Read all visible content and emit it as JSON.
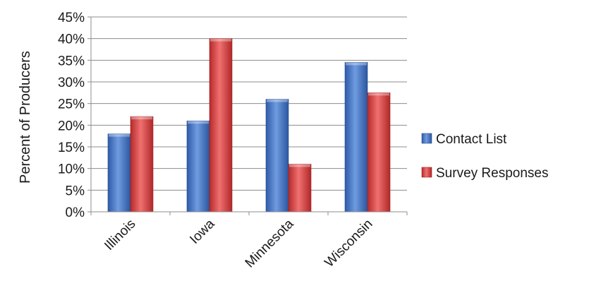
{
  "chart_data": {
    "type": "bar",
    "title": "",
    "xlabel": "",
    "ylabel": "Percent of Producers",
    "categories": [
      "Illinois",
      "Iowa",
      "Minnesota",
      "Wisconsin"
    ],
    "series": [
      {
        "name": "Contact List",
        "values": [
          18,
          21,
          26,
          34.5
        ],
        "color": "#4472c4"
      },
      {
        "name": "Survey Responses",
        "values": [
          22,
          40,
          11,
          27.5
        ],
        "color": "#e04b4b"
      }
    ],
    "ylim": [
      0,
      45
    ],
    "yticks": [
      "0%",
      "5%",
      "10%",
      "15%",
      "20%",
      "25%",
      "30%",
      "35%",
      "40%",
      "45%"
    ],
    "grid": true,
    "legend_position": "right"
  }
}
